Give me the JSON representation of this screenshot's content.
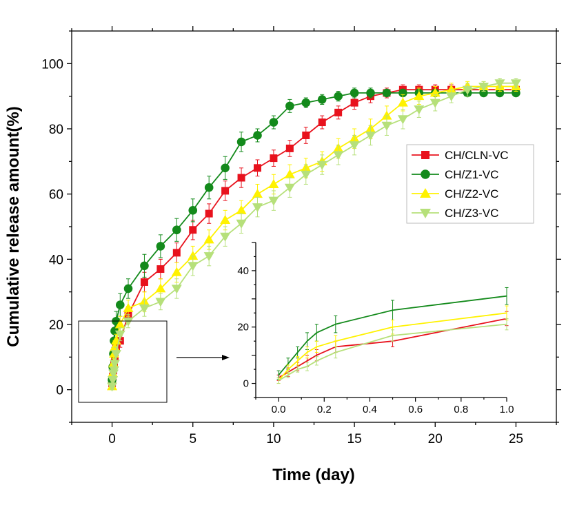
{
  "chart_data": [
    {
      "type": "line",
      "xlabel": "Time (day)",
      "ylabel": "Cumulative release amount(%)",
      "xlim": [
        -2.5,
        27.5
      ],
      "ylim": [
        -10,
        110
      ],
      "xticks": [
        0,
        5,
        10,
        15,
        20,
        25
      ],
      "yticks": [
        0,
        20,
        40,
        60,
        80,
        100
      ],
      "legend": "top-right",
      "grid": false,
      "series": [
        {
          "name": "CH/CLN-VC",
          "color": "#e8121d",
          "marker": "square",
          "x": [
            0,
            0.0417,
            0.0833,
            0.125,
            0.167,
            0.25,
            0.5,
            1,
            2,
            3,
            4,
            5,
            6,
            7,
            8,
            9,
            10,
            11,
            12,
            13,
            14,
            15,
            16,
            17,
            18,
            19,
            20,
            21,
            22,
            23,
            24,
            25
          ],
          "y": [
            2,
            4,
            6,
            8,
            10,
            13,
            15,
            23,
            33,
            37,
            42,
            49,
            54,
            61,
            65,
            68,
            71,
            74,
            78,
            82,
            85,
            88,
            90,
            91,
            92,
            92,
            92,
            92,
            92,
            92,
            92,
            92
          ],
          "err": [
            1,
            1.5,
            1.5,
            2,
            2,
            2,
            2,
            2.5,
            3,
            3,
            3,
            3,
            3,
            3,
            3,
            2.5,
            2.5,
            2.5,
            2.5,
            2,
            2,
            2,
            2,
            1.5,
            1.5,
            1.5,
            1.5,
            1.5,
            1.5,
            1.5,
            1.5,
            1.5
          ]
        },
        {
          "name": "CH/Z1-VC",
          "color": "#138a1b",
          "marker": "circle",
          "x": [
            0,
            0.0417,
            0.0833,
            0.125,
            0.167,
            0.25,
            0.5,
            1,
            2,
            3,
            4,
            5,
            6,
            7,
            8,
            9,
            10,
            11,
            12,
            13,
            14,
            15,
            16,
            17,
            18,
            19,
            20,
            21,
            22,
            23,
            24,
            25
          ],
          "y": [
            3,
            7,
            11,
            15,
            18,
            21,
            26,
            31,
            38,
            44,
            49,
            55,
            62,
            68,
            76,
            78,
            82,
            87,
            88,
            89,
            90,
            91,
            91,
            91,
            91,
            91,
            91,
            91,
            91,
            91,
            91,
            91
          ],
          "err": [
            1.5,
            2,
            2,
            3,
            3,
            3,
            3.5,
            3,
            3.5,
            3.5,
            3.5,
            3.5,
            3.5,
            3.5,
            3,
            2,
            2,
            2,
            1.5,
            1.5,
            1.5,
            1.5,
            1.5,
            1,
            1,
            1,
            1,
            1,
            1,
            1,
            1,
            1
          ]
        },
        {
          "name": "CH/Z2-VC",
          "color": "#fff200",
          "marker": "triangle-up",
          "x": [
            0,
            0.0417,
            0.0833,
            0.125,
            0.167,
            0.25,
            0.5,
            1,
            2,
            3,
            4,
            5,
            6,
            7,
            8,
            9,
            10,
            11,
            12,
            13,
            14,
            15,
            16,
            17,
            18,
            19,
            20,
            21,
            22,
            23,
            24,
            25
          ],
          "y": [
            1,
            5,
            8,
            11,
            13,
            15,
            20,
            25,
            27,
            31,
            36,
            41,
            46,
            52,
            55,
            60,
            63,
            66,
            68,
            70,
            74,
            77,
            80,
            84,
            88,
            90,
            91,
            92,
            93,
            93,
            93,
            93
          ],
          "err": [
            1,
            1.5,
            1.5,
            2,
            2,
            2,
            2.5,
            2.5,
            3,
            3,
            3,
            3,
            3,
            3,
            3,
            3,
            3,
            3,
            3,
            3,
            3,
            3,
            3,
            3,
            2.5,
            2.5,
            2,
            2,
            1.5,
            1.5,
            1.5,
            1.5
          ]
        },
        {
          "name": "CH/Z3-VC",
          "color": "#b6e07a",
          "marker": "triangle-down",
          "x": [
            0,
            0.0417,
            0.0833,
            0.125,
            0.167,
            0.25,
            0.5,
            1,
            2,
            3,
            4,
            5,
            6,
            7,
            8,
            9,
            10,
            11,
            12,
            13,
            14,
            15,
            16,
            17,
            18,
            19,
            20,
            21,
            22,
            23,
            24,
            25
          ],
          "y": [
            1,
            3,
            5,
            6,
            8,
            11,
            17,
            21,
            25,
            27,
            31,
            38,
            41,
            47,
            51,
            56,
            58,
            62,
            66,
            69,
            72,
            75,
            78,
            81,
            83,
            86,
            88,
            90,
            92,
            93,
            94,
            94
          ],
          "err": [
            1,
            1,
            1,
            1.5,
            1.5,
            2,
            2,
            2,
            2.5,
            2.5,
            3,
            3,
            3,
            3,
            3,
            3,
            3,
            3,
            3,
            3,
            3,
            3,
            3,
            3,
            3,
            2.5,
            2.5,
            2,
            2,
            1.5,
            1.5,
            1.5
          ]
        }
      ]
    },
    {
      "type": "line",
      "xlim": [
        -0.1,
        1.0
      ],
      "ylim": [
        -5,
        50
      ],
      "xticks": [
        0.0,
        0.2,
        0.4,
        0.6,
        0.8,
        1.0
      ],
      "xtick_labels": [
        "0.0",
        "0.2",
        "0.4",
        "0.6",
        "0.8",
        "1.0"
      ],
      "yticks": [
        0,
        20,
        40
      ],
      "legend": "none",
      "grid": false,
      "series": [
        {
          "name": "CH/CLN-VC",
          "color": "#e8121d",
          "x": [
            0,
            0.0417,
            0.0833,
            0.125,
            0.167,
            0.25,
            0.5,
            1
          ],
          "y": [
            2,
            4,
            6,
            8,
            10,
            13,
            15,
            23
          ],
          "err": [
            1,
            1.5,
            1.5,
            2,
            2,
            2,
            2,
            2.5
          ]
        },
        {
          "name": "CH/Z1-VC",
          "color": "#138a1b",
          "x": [
            0,
            0.0417,
            0.0833,
            0.125,
            0.167,
            0.25,
            0.5,
            1
          ],
          "y": [
            3,
            7,
            11,
            15,
            18,
            21,
            26,
            31
          ],
          "err": [
            1.5,
            2,
            2,
            3,
            3,
            3,
            3.5,
            3
          ]
        },
        {
          "name": "CH/Z2-VC",
          "color": "#fff200",
          "x": [
            0,
            0.0417,
            0.0833,
            0.125,
            0.167,
            0.25,
            0.5,
            1
          ],
          "y": [
            1,
            5,
            8,
            11,
            13,
            15,
            20,
            25
          ],
          "err": [
            1,
            1.5,
            1.5,
            2,
            2,
            2,
            2.5,
            2.5
          ]
        },
        {
          "name": "CH/Z3-VC",
          "color": "#b6e07a",
          "x": [
            0,
            0.0417,
            0.0833,
            0.125,
            0.167,
            0.25,
            0.5,
            1
          ],
          "y": [
            1,
            3,
            5,
            6,
            8,
            11,
            17,
            21
          ],
          "err": [
            1,
            1,
            1,
            1.5,
            1.5,
            2,
            2,
            2
          ]
        }
      ]
    }
  ]
}
